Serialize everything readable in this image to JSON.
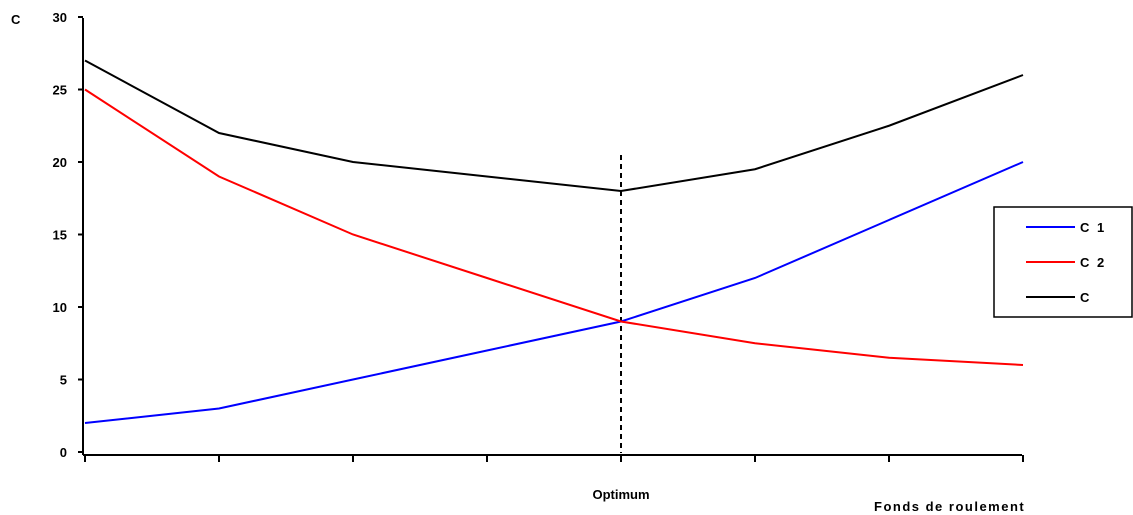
{
  "chart_data": {
    "type": "line",
    "title": "",
    "ylabel": "C",
    "xlabel": "Fonds de roulement",
    "ylim": [
      0,
      30
    ],
    "yticks": [
      0,
      5,
      10,
      15,
      20,
      25,
      30
    ],
    "x": [
      0,
      1,
      2,
      3,
      4,
      5,
      6,
      7
    ],
    "grid": false,
    "legend_position": "right",
    "series": [
      {
        "name": "C 1",
        "color": "#0000ff",
        "values": [
          2,
          3,
          5,
          7,
          9,
          12,
          16,
          20
        ]
      },
      {
        "name": "C 2",
        "color": "#ff0000",
        "values": [
          25,
          19,
          15,
          12,
          9,
          7.5,
          6.5,
          6
        ]
      },
      {
        "name": "C",
        "color": "#000000",
        "values": [
          27,
          22,
          20,
          19,
          18,
          19.5,
          22.5,
          26
        ]
      }
    ],
    "annotations": [
      {
        "text": "Optimum",
        "x": 4,
        "style": "dashed-vertical-line"
      }
    ]
  }
}
